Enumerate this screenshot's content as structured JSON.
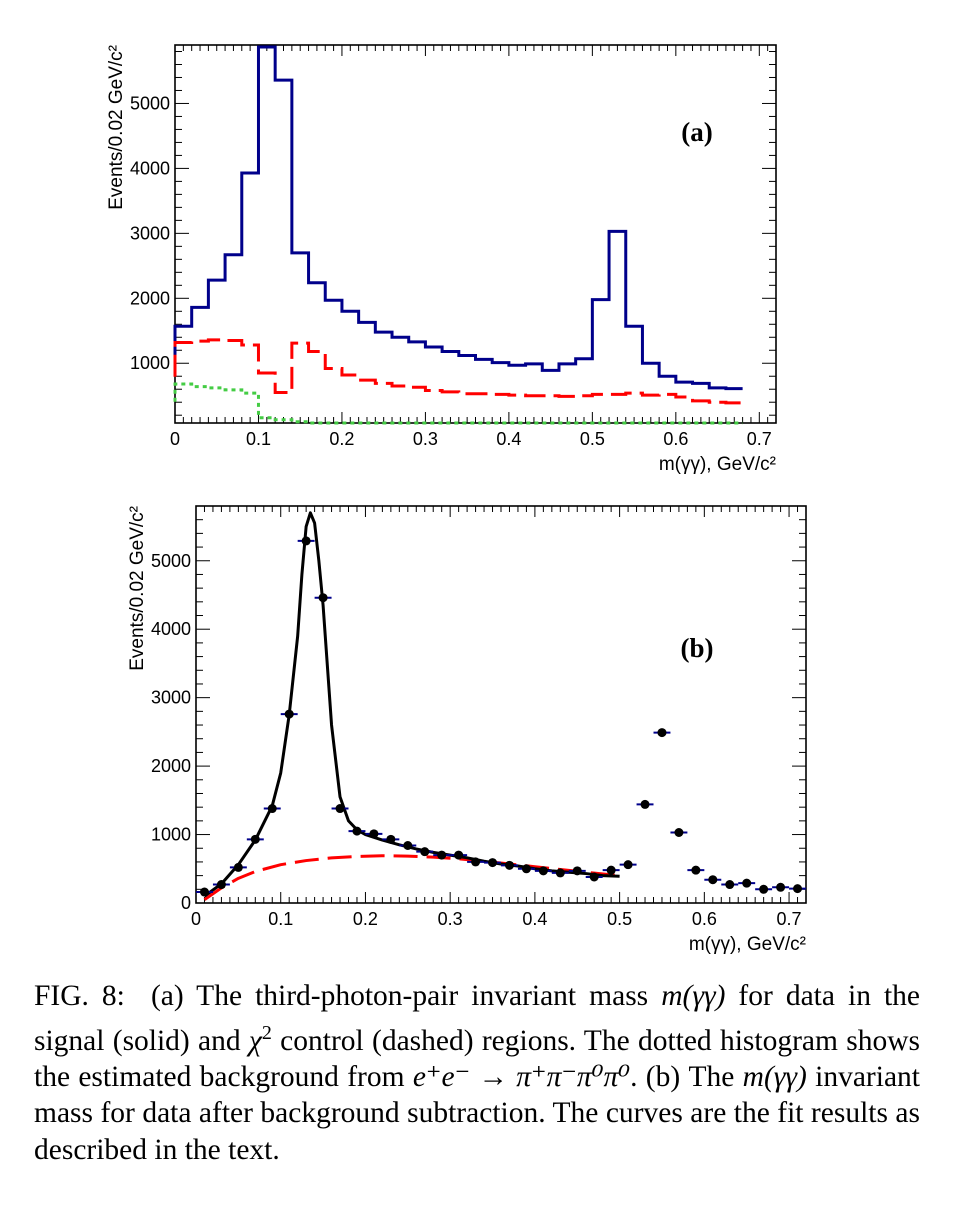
{
  "chart_data": [
    {
      "panel": "(a)",
      "type": "histogram",
      "xlabel": "m(γγ), GeV/c²",
      "ylabel": "Events/0.02 GeV/c²",
      "xlim": [
        0,
        0.72
      ],
      "ylim": [
        80,
        5900
      ],
      "xticks": [
        "0",
        "0.1",
        "0.2",
        "0.3",
        "0.4",
        "0.5",
        "0.6",
        "0.7"
      ],
      "yticks": [
        "1000",
        "2000",
        "3000",
        "4000",
        "5000"
      ],
      "bin_width": 0.02,
      "bin_edges_start": 0,
      "series": [
        {
          "style": "solid",
          "color": "#00008b",
          "values": [
            1570,
            1860,
            2280,
            2670,
            3930,
            5870,
            5360,
            2700,
            2240,
            1970,
            1800,
            1630,
            1480,
            1400,
            1330,
            1250,
            1180,
            1120,
            1060,
            1010,
            970,
            990,
            890,
            990,
            1070,
            1980,
            3030,
            1570,
            1000,
            800,
            710,
            690,
            620,
            610
          ]
        },
        {
          "style": "dashed",
          "color": "#ff0000",
          "values": [
            1320,
            1340,
            1360,
            1350,
            1280,
            850,
            550,
            1310,
            1180,
            920,
            820,
            740,
            690,
            650,
            630,
            580,
            560,
            530,
            530,
            520,
            510,
            500,
            500,
            490,
            500,
            520,
            520,
            540,
            510,
            520,
            480,
            420,
            400,
            390
          ]
        },
        {
          "style": "dotted",
          "color": "#44cc44",
          "values": [
            680,
            640,
            620,
            590,
            540,
            160,
            130,
            100,
            70,
            60,
            40,
            20,
            15,
            10,
            10,
            10,
            10,
            10,
            10,
            10,
            10,
            10,
            10,
            10,
            10,
            10,
            10,
            10,
            10,
            10,
            10,
            10,
            10,
            10
          ]
        }
      ]
    },
    {
      "panel": "(b)",
      "type": "scatter",
      "xlabel": "m(γγ), GeV/c²",
      "ylabel": "Events/0.02 GeV/c²",
      "xlim": [
        0,
        0.72
      ],
      "ylim": [
        0,
        5800
      ],
      "xticks": [
        "0",
        "0.1",
        "0.2",
        "0.3",
        "0.4",
        "0.5",
        "0.6",
        "0.7"
      ],
      "yticks": [
        "0",
        "1000",
        "2000",
        "3000",
        "4000",
        "5000"
      ],
      "points": {
        "x": [
          0.01,
          0.03,
          0.05,
          0.07,
          0.09,
          0.11,
          0.13,
          0.15,
          0.17,
          0.19,
          0.21,
          0.23,
          0.25,
          0.27,
          0.29,
          0.31,
          0.33,
          0.35,
          0.37,
          0.39,
          0.41,
          0.43,
          0.45,
          0.47,
          0.49,
          0.51,
          0.53,
          0.55,
          0.57,
          0.59,
          0.61,
          0.63,
          0.65,
          0.67,
          0.69,
          0.71
        ],
        "y": [
          160,
          270,
          520,
          930,
          1380,
          2760,
          5290,
          4460,
          1380,
          1050,
          1010,
          930,
          840,
          750,
          700,
          700,
          600,
          590,
          550,
          500,
          470,
          440,
          470,
          380,
          480,
          560,
          1440,
          2490,
          1030,
          480,
          340,
          270,
          290,
          200,
          230,
          210
        ],
        "xerr": 0.01,
        "marker_color": "#000000",
        "error_color": "#00008b"
      },
      "fit_total": {
        "style": "solid",
        "color": "#000000",
        "x": [
          0.01,
          0.03,
          0.05,
          0.07,
          0.09,
          0.1,
          0.11,
          0.12,
          0.125,
          0.13,
          0.135,
          0.14,
          0.145,
          0.15,
          0.16,
          0.17,
          0.18,
          0.19,
          0.2,
          0.22,
          0.24,
          0.26,
          0.28,
          0.3,
          0.32,
          0.34,
          0.36,
          0.38,
          0.4,
          0.42,
          0.44,
          0.46,
          0.48,
          0.5
        ],
        "y": [
          100,
          280,
          560,
          920,
          1420,
          1900,
          2750,
          3900,
          4800,
          5500,
          5700,
          5550,
          5000,
          4350,
          2600,
          1550,
          1200,
          1070,
          1000,
          920,
          850,
          790,
          740,
          700,
          660,
          610,
          570,
          540,
          500,
          470,
          450,
          430,
          400,
          390
        ]
      },
      "fit_background": {
        "style": "dashed",
        "color": "#ff0000",
        "x": [
          0.01,
          0.03,
          0.05,
          0.07,
          0.1,
          0.13,
          0.16,
          0.19,
          0.22,
          0.25,
          0.28,
          0.31,
          0.34,
          0.37,
          0.4,
          0.43,
          0.46,
          0.5
        ],
        "y": [
          50,
          220,
          360,
          460,
          560,
          620,
          660,
          680,
          690,
          685,
          670,
          645,
          610,
          570,
          530,
          490,
          450,
          400
        ]
      }
    }
  ],
  "panels": {
    "a": {
      "label": "(a)"
    },
    "b": {
      "label": "(b)"
    }
  },
  "caption": {
    "lead": "FIG. 8:",
    "part_a": "(a) The third-photon-pair invariant mass ",
    "mgg": "m(γγ)",
    "part_a2": " for data in the signal (solid) and ",
    "chi": "χ",
    "chi_sup": "2",
    "part_a3": " control (dashed) regions. The dotted histogram shows the estimated background from ",
    "reaction": "e⁺e⁻ → π⁺π⁻π⁰π⁰",
    "part_b1": ". (b) The ",
    "part_b2": " invariant mass for data after background subtraction. The curves are the fit results as described in the text."
  }
}
